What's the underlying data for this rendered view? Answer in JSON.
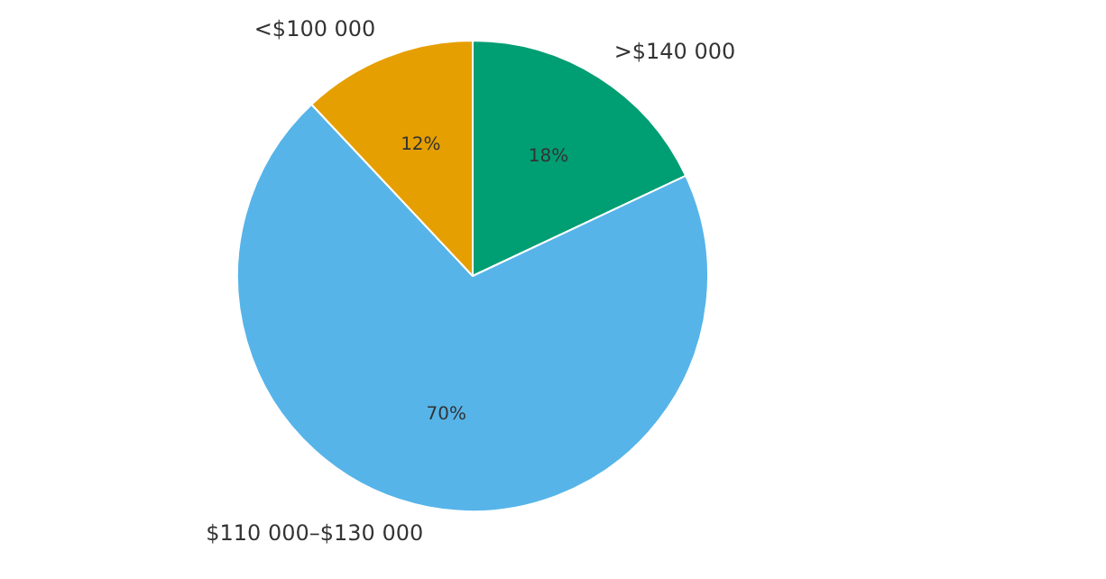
{
  "chart_data": {
    "type": "pie",
    "categories": [
      ">$140 000",
      "$110 000–$130 000",
      "<$100 000"
    ],
    "values": [
      18,
      70,
      12
    ],
    "colors": [
      "#009e73",
      "#56b4e9",
      "#e69f00"
    ],
    "value_labels": [
      "18%",
      "70%",
      "12%"
    ],
    "legend": false
  }
}
